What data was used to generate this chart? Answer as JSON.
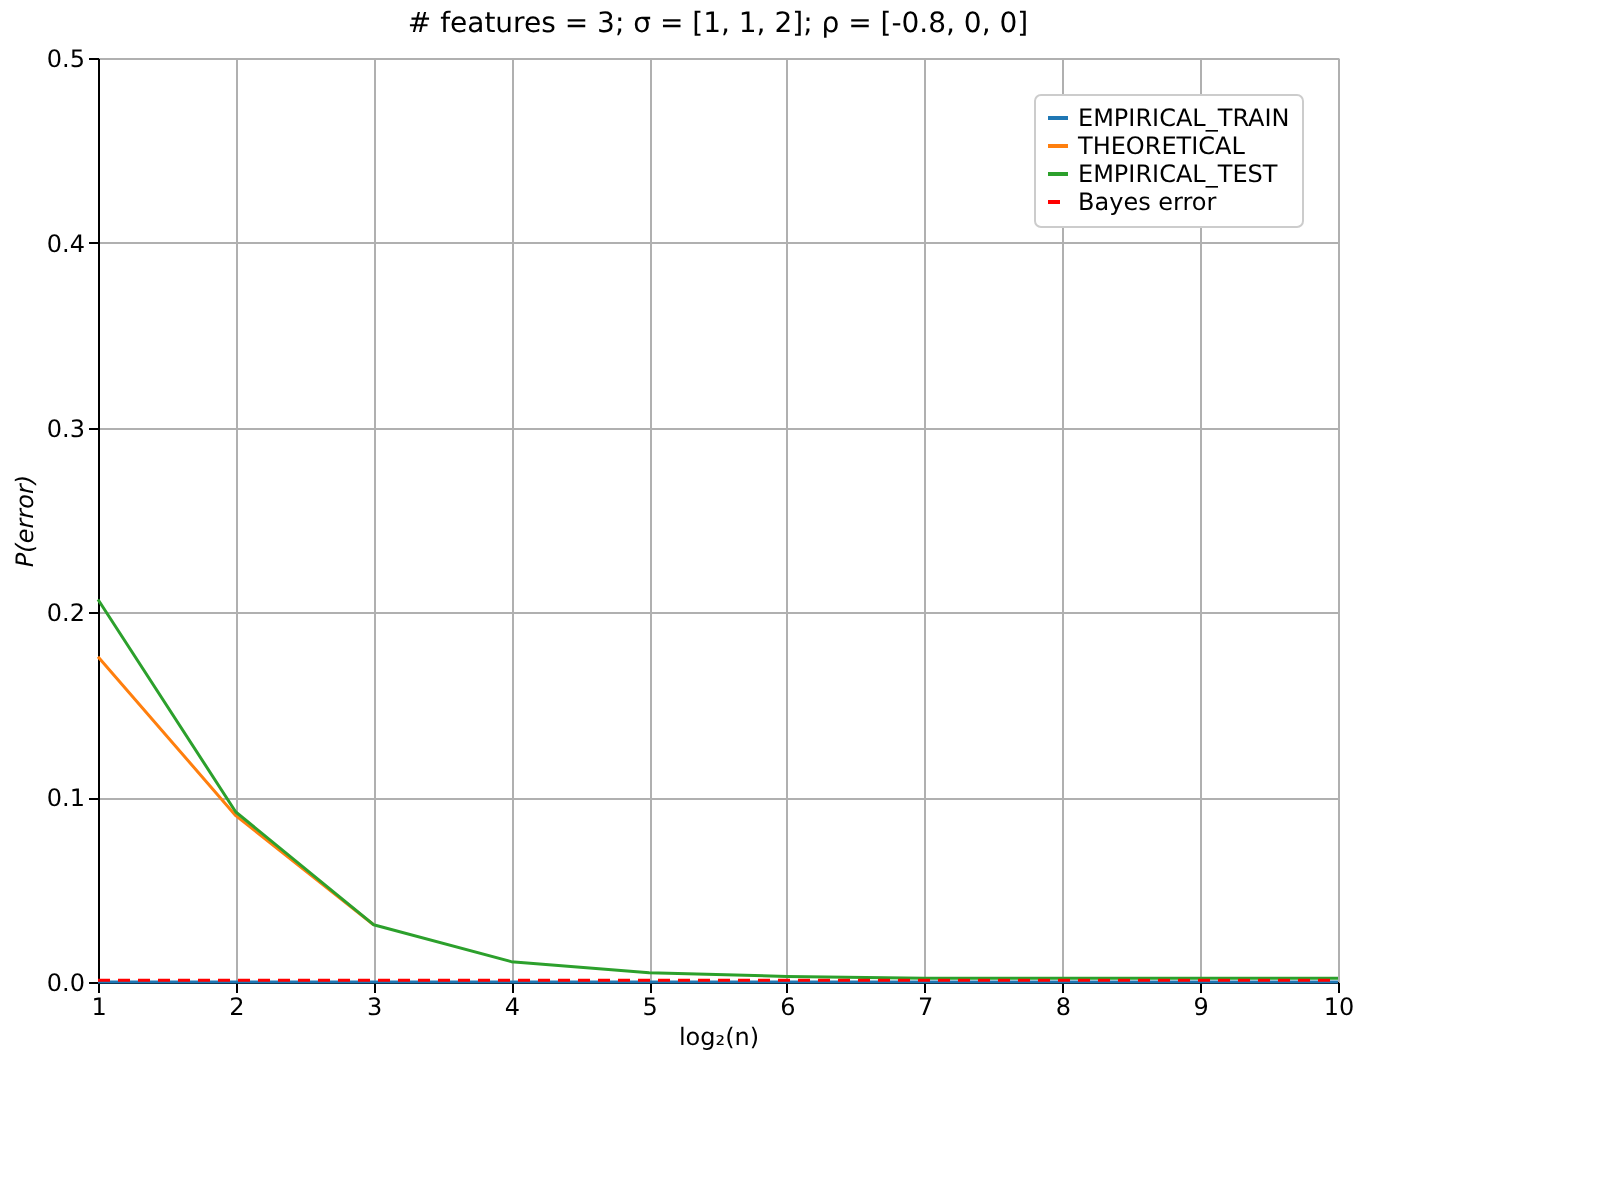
{
  "chart_data": {
    "type": "line",
    "title": "# features = 3;  σ = [1, 1, 2];  ρ = [-0.8, 0, 0]",
    "xlabel": "log₂(n)",
    "ylabel": "P(error)",
    "x": [
      1,
      2,
      3,
      4,
      5,
      6,
      7,
      8,
      9,
      10
    ],
    "series": [
      {
        "name": "EMPIRICAL_TRAIN",
        "color": "#1f77b4",
        "line_style": "solid",
        "values": [
          0,
          0,
          0,
          0,
          0,
          0,
          0,
          0,
          0,
          0
        ]
      },
      {
        "name": "THEORETICAL",
        "color": "#ff7f0e",
        "line_style": "solid",
        "values": [
          0.176,
          0.09,
          0.031,
          null,
          null,
          null,
          null,
          null,
          null,
          null
        ]
      },
      {
        "name": "EMPIRICAL_TEST",
        "color": "#2ca02c",
        "line_style": "solid",
        "values": [
          0.207,
          0.092,
          0.031,
          0.011,
          0.005,
          0.003,
          0.002,
          0.002,
          0.002,
          0.002
        ]
      },
      {
        "name": "Bayes error",
        "color": "#ff0000",
        "line_style": "dashed",
        "values": [
          0.001,
          0.001,
          0.001,
          0.001,
          0.001,
          0.001,
          0.001,
          0.001,
          0.001,
          0.001
        ]
      }
    ],
    "xlim": [
      1,
      10
    ],
    "xticks": [
      1,
      2,
      3,
      4,
      5,
      6,
      7,
      8,
      9,
      10
    ],
    "ylim": [
      0,
      0.5
    ],
    "yticks": [
      {
        "value": 0,
        "label": "0.0"
      },
      0.1,
      0.2,
      0.3,
      0.4,
      0.5
    ],
    "grid": true,
    "legend": "top right",
    "marker": "none"
  }
}
